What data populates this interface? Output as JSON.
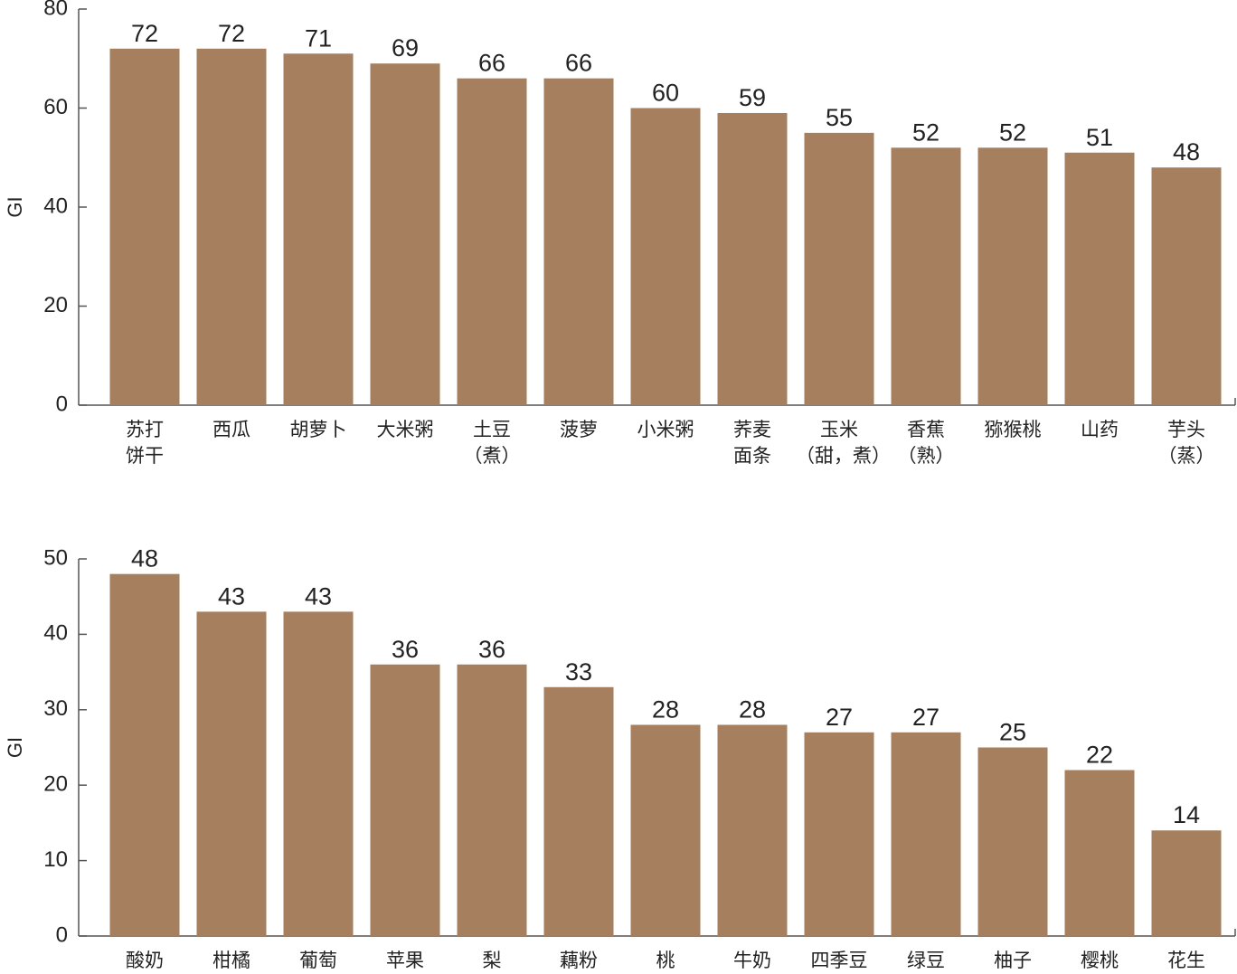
{
  "chart_data": [
    {
      "type": "bar",
      "y_label": "GI",
      "categories": [
        "苏打\n饼干",
        "西瓜",
        "胡萝卜",
        "大米粥",
        "土豆\n（煮）",
        "菠萝",
        "小米粥",
        "荞麦\n面条",
        "玉米\n（甜，煮）",
        "香蕉\n（熟）",
        "猕猴桃",
        "山药",
        "芋头\n（蒸）"
      ],
      "values": [
        72,
        72,
        71,
        69,
        66,
        66,
        60,
        59,
        55,
        52,
        52,
        51,
        48
      ],
      "color": "#a67f5e",
      "ylim": [
        0,
        80
      ],
      "yticks": [
        0,
        20,
        40,
        60,
        80
      ]
    },
    {
      "type": "bar",
      "y_label": "GI",
      "categories": [
        "酸奶",
        "柑橘",
        "葡萄",
        "苹果",
        "梨",
        "藕粉",
        "桃",
        "牛奶",
        "四季豆",
        "绿豆",
        "柚子",
        "樱桃",
        "花生"
      ],
      "values": [
        48,
        43,
        43,
        36,
        36,
        33,
        28,
        28,
        27,
        27,
        25,
        22,
        14
      ],
      "color": "#a67f5e",
      "ylim": [
        0,
        50
      ],
      "yticks": [
        0,
        10,
        20,
        30,
        40,
        50
      ]
    }
  ]
}
